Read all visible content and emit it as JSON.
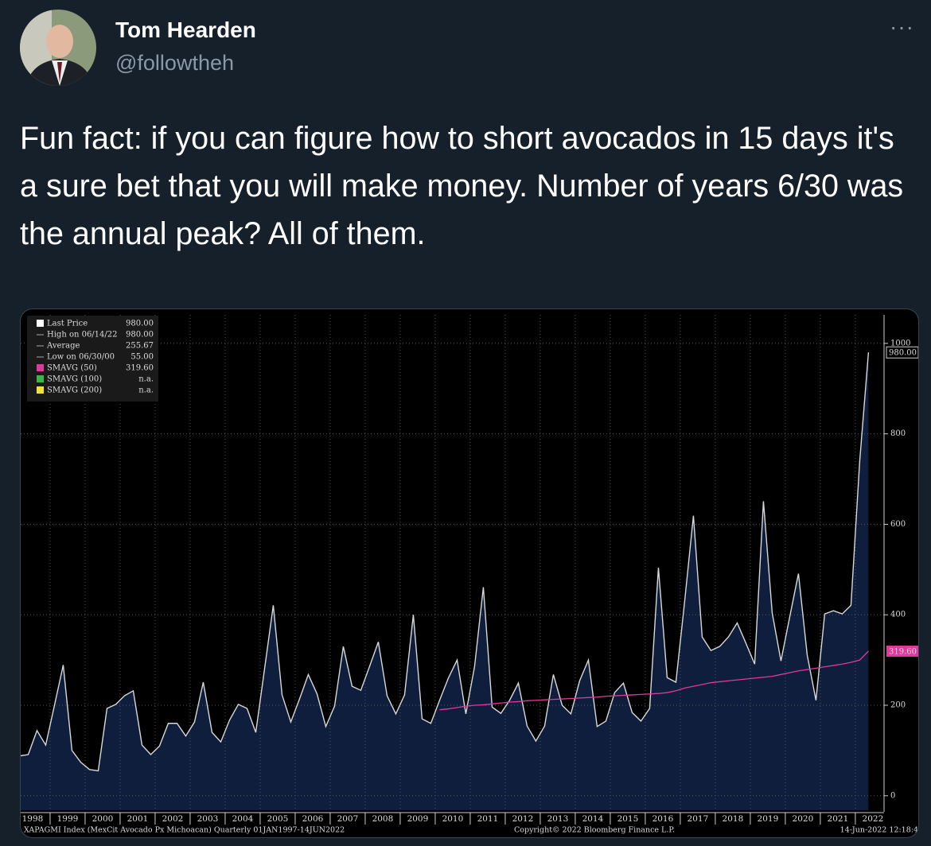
{
  "tweet": {
    "author": {
      "name": "Tom Hearden",
      "handle": "@followtheh"
    },
    "text": "Fun fact: if you can figure how to short avocados in 15 days it's a sure bet that you will make money. Number of years 6/30 was the annual peak? All of them."
  },
  "chart_data": {
    "type": "line",
    "legend": [
      {
        "label": "Last Price",
        "value": "980.00"
      },
      {
        "label": "High on 06/14/22",
        "value": "980.00"
      },
      {
        "label": "Average",
        "value": "255.67"
      },
      {
        "label": "Low on 06/30/00",
        "value": "55.00"
      },
      {
        "label": "SMAVG (50)",
        "value": "319.60"
      },
      {
        "label": "SMAVG (100)",
        "value": "n.a."
      },
      {
        "label": "SMAVG (200)",
        "value": "n.a."
      }
    ],
    "x": [
      1998.125,
      1998.375,
      1998.625,
      1998.875,
      1999.125,
      1999.375,
      1999.625,
      1999.875,
      2000.125,
      2000.375,
      2000.625,
      2000.875,
      2001.125,
      2001.375,
      2001.625,
      2001.875,
      2002.125,
      2002.375,
      2002.625,
      2002.875,
      2003.125,
      2003.375,
      2003.625,
      2003.875,
      2004.125,
      2004.375,
      2004.625,
      2004.875,
      2005.125,
      2005.375,
      2005.625,
      2005.875,
      2006.125,
      2006.375,
      2006.625,
      2006.875,
      2007.125,
      2007.375,
      2007.625,
      2007.875,
      2008.125,
      2008.375,
      2008.625,
      2008.875,
      2009.125,
      2009.375,
      2009.625,
      2009.875,
      2010.125,
      2010.375,
      2010.625,
      2010.875,
      2011.125,
      2011.375,
      2011.625,
      2011.875,
      2012.125,
      2012.375,
      2012.625,
      2012.875,
      2013.125,
      2013.375,
      2013.625,
      2013.875,
      2014.125,
      2014.375,
      2014.625,
      2014.875,
      2015.125,
      2015.375,
      2015.625,
      2015.875,
      2016.125,
      2016.375,
      2016.625,
      2016.875,
      2017.125,
      2017.375,
      2017.625,
      2017.875,
      2018.125,
      2018.375,
      2018.625,
      2018.875,
      2019.125,
      2019.375,
      2019.625,
      2019.875,
      2020.125,
      2020.375,
      2020.625,
      2020.875,
      2021.125,
      2021.375,
      2021.625,
      2021.875,
      2022.125,
      2022.375
    ],
    "series": [
      {
        "name": "Last Price",
        "color": "#d8d8d8",
        "fill": "#0e1e3c",
        "values": [
          88,
          91,
          144,
          112,
          200,
          289,
          100,
          74,
          58,
          55,
          193,
          202,
          221,
          232,
          112,
          91,
          110,
          160,
          160,
          132,
          163,
          251,
          140,
          119,
          167,
          202,
          193,
          140,
          280,
          421,
          223,
          163,
          214,
          268,
          225,
          153,
          198,
          330,
          242,
          233,
          286,
          340,
          221,
          181,
          223,
          400,
          170,
          160,
          211,
          260,
          300,
          181,
          286,
          461,
          196,
          182,
          211,
          249,
          154,
          121,
          154,
          268,
          200,
          181,
          254,
          300,
          153,
          165,
          228,
          249,
          184,
          165,
          193,
          504,
          261,
          251,
          430,
          619,
          351,
          321,
          330,
          351,
          382,
          337,
          291,
          651,
          404,
          298,
          395,
          491,
          311,
          211,
          402,
          409,
          402,
          421,
          740,
          980
        ],
        "value_labels": [
          null,
          null,
          null,
          null,
          null,
          null,
          null,
          null,
          null,
          null,
          null,
          null,
          null,
          null,
          null,
          null,
          null,
          null,
          null,
          null,
          null,
          null,
          null,
          null,
          null,
          null,
          null,
          null,
          null,
          null,
          null,
          null,
          null,
          null,
          null,
          null,
          null,
          null,
          null,
          null,
          null,
          null,
          null,
          null,
          null,
          null,
          null,
          null,
          null,
          null,
          null,
          null,
          null,
          null,
          null,
          null,
          null,
          null,
          null,
          null,
          null,
          null,
          null,
          null,
          null,
          null,
          null,
          null,
          null,
          null,
          null,
          null,
          null,
          null,
          null,
          null,
          null,
          null,
          null,
          null,
          null,
          null,
          null,
          null,
          null,
          null,
          null,
          null,
          null,
          null,
          null,
          null,
          null,
          null,
          null,
          null,
          null,
          "980.00"
        ]
      },
      {
        "name": "SMAVG (50)",
        "color": "#e0399c",
        "values": [
          null,
          null,
          null,
          null,
          null,
          null,
          null,
          null,
          null,
          null,
          null,
          null,
          null,
          null,
          null,
          null,
          null,
          null,
          null,
          null,
          null,
          null,
          null,
          null,
          null,
          null,
          null,
          null,
          null,
          null,
          null,
          null,
          null,
          null,
          null,
          null,
          null,
          null,
          null,
          null,
          null,
          null,
          null,
          null,
          null,
          null,
          null,
          null,
          190,
          192,
          195,
          198,
          200,
          201,
          203,
          205,
          207,
          208,
          210,
          211,
          212,
          213,
          214,
          215,
          216,
          217,
          218,
          220,
          221,
          222,
          223,
          224,
          225,
          226,
          228,
          232,
          238,
          242,
          246,
          250,
          252,
          254,
          256,
          258,
          260,
          262,
          264,
          268,
          272,
          276,
          279,
          282,
          285,
          288,
          291,
          295,
          300,
          319.6
        ],
        "value_labels": [
          null,
          null,
          null,
          null,
          null,
          null,
          null,
          null,
          null,
          null,
          null,
          null,
          null,
          null,
          null,
          null,
          null,
          null,
          null,
          null,
          null,
          null,
          null,
          null,
          null,
          null,
          null,
          null,
          null,
          null,
          null,
          null,
          null,
          null,
          null,
          null,
          null,
          null,
          null,
          null,
          null,
          null,
          null,
          null,
          null,
          null,
          null,
          null,
          null,
          null,
          null,
          null,
          null,
          null,
          null,
          null,
          null,
          null,
          null,
          null,
          null,
          null,
          null,
          null,
          null,
          null,
          null,
          null,
          null,
          null,
          null,
          null,
          null,
          null,
          null,
          null,
          null,
          null,
          null,
          null,
          null,
          null,
          null,
          null,
          null,
          null,
          null,
          null,
          null,
          null,
          null,
          null,
          null,
          null,
          null,
          null,
          null,
          "319.60"
        ]
      }
    ],
    "xlim": [
      1998.16,
      2022.82
    ],
    "xticks": [
      1998,
      1999,
      2000,
      2001,
      2002,
      2003,
      2004,
      2005,
      2006,
      2007,
      2008,
      2009,
      2010,
      2011,
      2012,
      2013,
      2014,
      2015,
      2016,
      2017,
      2018,
      2019,
      2020,
      2021,
      2022
    ],
    "ylim": [
      -32,
      1063
    ],
    "yticks": [
      0,
      200,
      400,
      600,
      800,
      1000
    ],
    "grid": true,
    "footer_left": "XAPAGMI Index (MexCit Avocado Px Michoacan)  Quarterly 01JAN1997-14JUN2022",
    "footer_center": "Copyright© 2022 Bloomberg Finance L.P.",
    "footer_right": "14-Jun-2022 12:18:4"
  }
}
